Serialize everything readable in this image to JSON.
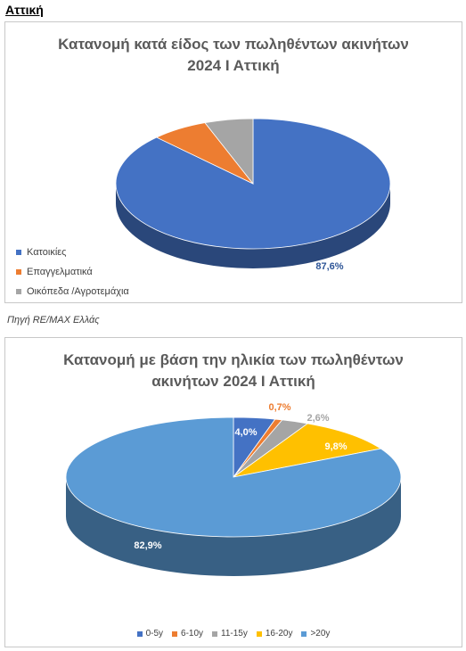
{
  "page": {
    "heading": "Αττική",
    "source": "Πηγή RE/MAX Ελλάς"
  },
  "chart_data": [
    {
      "type": "pie",
      "title_line1": "Κατανομή κατά είδος των πωληθέντων ακινήτων",
      "title_line2": "2024 Ι Αττική",
      "categories": [
        "Κατοικίες",
        "Επαγγελματικά",
        "Οικόπεδα /Αγροτεμάχια"
      ],
      "values": [
        87.6,
        6.7,
        5.7
      ],
      "labels": [
        "87,6%",
        "6,7%",
        "5,7%"
      ],
      "colors": [
        "#4472c4",
        "#ed7d31",
        "#a5a5a5"
      ],
      "legend": "left-bottom"
    },
    {
      "type": "pie",
      "title_line1": "Κατανομή με βάση την ηλικία των πωληθέντων",
      "title_line2": "ακινήτων 2024 Ι Αττική",
      "categories": [
        "0-5y",
        "6-10y",
        "11-15y",
        "16-20y",
        ">20y"
      ],
      "values": [
        4.0,
        0.7,
        2.6,
        9.8,
        82.9
      ],
      "labels": [
        "4,0%",
        "0,7%",
        "2,6%",
        "9,8%",
        "82,9%"
      ],
      "colors": [
        "#4472c4",
        "#ed7d31",
        "#a5a5a5",
        "#ffc000",
        "#5b9bd5"
      ],
      "legend": "bottom"
    }
  ]
}
